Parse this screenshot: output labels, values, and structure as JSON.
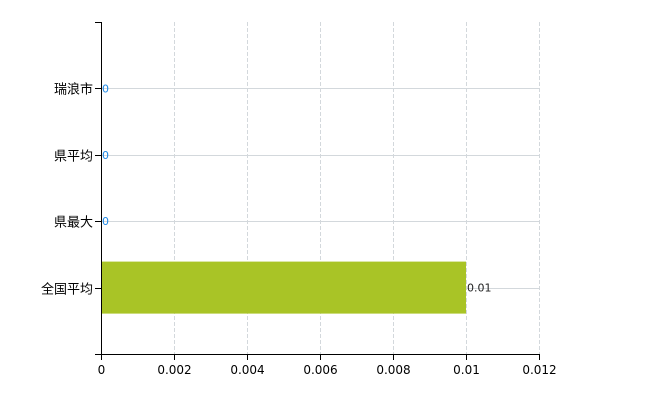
{
  "chart_data": {
    "type": "bar",
    "orientation": "horizontal",
    "title": "",
    "xlabel": "",
    "ylabel": "",
    "categories": [
      "瑞浪市",
      "県平均",
      "県最大",
      "全国平均"
    ],
    "values": [
      0,
      0,
      0,
      0.01
    ],
    "data_labels": [
      "0",
      "0",
      "0",
      "0.01"
    ],
    "xlim": [
      0,
      0.012
    ],
    "x_ticks": [
      "0",
      "0.002",
      "0.004",
      "0.006",
      "0.008",
      "0.01",
      "0.012"
    ],
    "x_tick_values": [
      0,
      0.002,
      0.004,
      0.006,
      0.008,
      0.01,
      0.012
    ],
    "grid": true,
    "legend": "none",
    "colors": {
      "bar": "#a9c426",
      "zero_label": "#1e88e5",
      "label": "#222222",
      "grid": "#d3d8dc",
      "axis": "#000000"
    }
  }
}
